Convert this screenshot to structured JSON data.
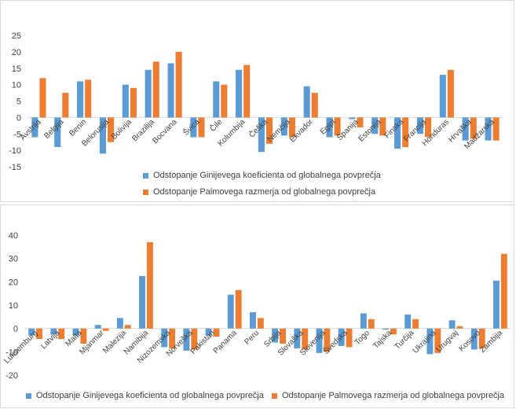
{
  "colors": {
    "gini": "#5b9bd5",
    "palma": "#ed7d31",
    "grid": "#d9d9d9",
    "text": "#404040"
  },
  "chart_data": [
    {
      "type": "bar",
      "ylim": [
        -15,
        25
      ],
      "yticks": [
        -15,
        -10,
        -5,
        0,
        5,
        10,
        15,
        20,
        25
      ],
      "grid": false,
      "legend_position": "bottom",
      "categories": [
        "Avstrija",
        "Belgija",
        "Benin",
        "Belorusija",
        "Bolivija",
        "Brazilija",
        "Bocvana",
        "Švica",
        "Čile",
        "Kolumbija",
        "Češka",
        "Nemčija",
        "Ekvador",
        "Egipt",
        "Španija",
        "Estonija",
        "Finska",
        "Francija",
        "Honduras",
        "Hrvaška",
        "Madžarska"
      ],
      "series": [
        {
          "name": "Odstopanje Ginijevega koeficienta od globalnega povprečja",
          "values": [
            -6,
            -9,
            11,
            -11,
            10,
            14.5,
            16.5,
            -6,
            11,
            14.5,
            -10.5,
            -5.5,
            9.5,
            -6,
            -0.5,
            -5,
            -9.5,
            -5,
            13,
            -7,
            -7
          ]
        },
        {
          "name": "Odstopanje Palmovega razmerja od globalnega povprečja",
          "values": [
            12,
            7.5,
            11.5,
            -7.5,
            9,
            17,
            20,
            -6,
            10,
            16,
            -8,
            -6,
            7.5,
            -5.5,
            -3,
            -5.5,
            -9,
            -6,
            14.5,
            -6.5,
            -7
          ]
        }
      ]
    },
    {
      "type": "bar",
      "ylim": [
        -20,
        40
      ],
      "yticks": [
        -20,
        -10,
        0,
        10,
        20,
        30,
        40
      ],
      "grid": false,
      "legend_position": "bottom",
      "categories": [
        "Luksemburg",
        "Latvija",
        "Malta",
        "Mjanmar",
        "Malezija",
        "Namibija",
        "Nizozemska",
        "Norveška",
        "Pakistan",
        "Panama",
        "Peru",
        "Srbija",
        "Slovaška",
        "Slovenija",
        "Švedska",
        "Togo",
        "Tajska",
        "Turčija",
        "Ukrajina",
        "Urugvaj",
        "Kosovo",
        "Zambija"
      ],
      "series": [
        {
          "name": "Odstopanje Ginijevega koeficienta od globalnega povprečja",
          "values": [
            -3,
            -2.5,
            -3,
            1.5,
            4.5,
            22.5,
            -8,
            -9.5,
            -3,
            14.5,
            7,
            -6,
            -8.5,
            -10.5,
            -7.5,
            6.5,
            -0.5,
            6,
            -11,
            3.5,
            -9,
            20.5
          ]
        },
        {
          "name": "Odstopanje Palmovega razmerja od globalnega povprečja",
          "values": [
            -4.5,
            -4.5,
            -6.5,
            -1,
            1.5,
            37,
            -8.5,
            -9,
            -3.5,
            16.5,
            4.5,
            -6.5,
            -9,
            -10,
            -8,
            4,
            -2.5,
            4,
            -10.5,
            1,
            -8.5,
            32
          ]
        }
      ]
    }
  ]
}
